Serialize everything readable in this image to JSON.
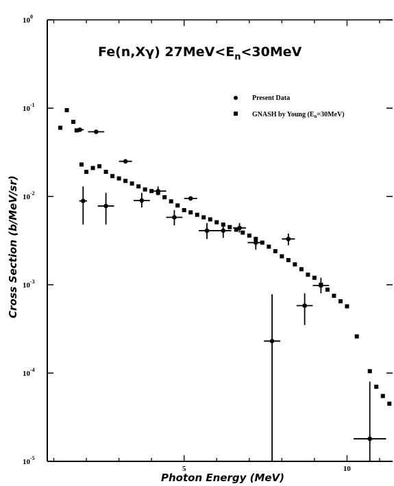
{
  "chart_data": {
    "type": "scatter",
    "title": "Fe(n,Xγ)  27MeV<E",
    "title_sub": "n",
    "title_tail": "<30MeV",
    "xlabel": "Photon Energy  (MeV)",
    "ylabel": "Cross Section  (b/MeV/sr)",
    "xlim": [
      0.8,
      11.4
    ],
    "ylim_log10": [
      -5,
      0
    ],
    "y_scale": "log",
    "x_ticks": [
      {
        "value": 5,
        "label": "5"
      },
      {
        "value": 10,
        "label": "10"
      }
    ],
    "y_ticks": [
      {
        "exp": 0,
        "label": "10",
        "sup": "0"
      },
      {
        "exp": -1,
        "label": "10",
        "sup": "-1"
      },
      {
        "exp": -2,
        "label": "10",
        "sup": "-2"
      },
      {
        "exp": -3,
        "label": "10",
        "sup": "-3"
      },
      {
        "exp": -4,
        "label": "10",
        "sup": "-4"
      },
      {
        "exp": -5,
        "label": "10",
        "sup": "-5"
      }
    ],
    "legend_position": "top-right",
    "series": [
      {
        "name": "Present Data",
        "marker": "circle",
        "points": [
          {
            "x": 1.8,
            "y": 0.057,
            "xerr": 0.12
          },
          {
            "x": 2.3,
            "y": 0.054,
            "xerr": 0.25
          },
          {
            "x": 1.9,
            "y": 0.0089,
            "xerr": 0.12,
            "ylo": 0.0048,
            "yhi": 0.013
          },
          {
            "x": 2.6,
            "y": 0.0078,
            "xerr": 0.25,
            "ylo": 0.0048,
            "yhi": 0.011
          },
          {
            "x": 3.2,
            "y": 0.025,
            "xerr": 0.2
          },
          {
            "x": 3.7,
            "y": 0.009,
            "xerr": 0.25,
            "ylo": 0.0075,
            "yhi": 0.011
          },
          {
            "x": 4.2,
            "y": 0.0115,
            "xerr": 0.25,
            "ylo": 0.0103,
            "yhi": 0.013
          },
          {
            "x": 4.7,
            "y": 0.0058,
            "xerr": 0.25,
            "ylo": 0.0047,
            "yhi": 0.007
          },
          {
            "x": 5.2,
            "y": 0.0095,
            "xerr": 0.2
          },
          {
            "x": 5.7,
            "y": 0.0041,
            "xerr": 0.25,
            "ylo": 0.0033,
            "yhi": 0.005
          },
          {
            "x": 6.2,
            "y": 0.0041,
            "xerr": 0.25,
            "ylo": 0.0034,
            "yhi": 0.0048
          },
          {
            "x": 6.7,
            "y": 0.0044,
            "xerr": 0.2,
            "ylo": 0.0039,
            "yhi": 0.005
          },
          {
            "x": 7.2,
            "y": 0.003,
            "xerr": 0.25,
            "ylo": 0.0025,
            "yhi": 0.0035
          },
          {
            "x": 7.7,
            "y": 0.00023,
            "xerr": 0.25,
            "ylo": 1e-05,
            "yhi": 0.00078
          },
          {
            "x": 8.2,
            "y": 0.0033,
            "xerr": 0.2,
            "ylo": 0.0028,
            "yhi": 0.0038
          },
          {
            "x": 8.7,
            "y": 0.00058,
            "xerr": 0.25,
            "ylo": 0.00035,
            "yhi": 0.0008
          },
          {
            "x": 9.2,
            "y": 0.00098,
            "xerr": 0.25,
            "ylo": 0.0008,
            "yhi": 0.0012
          },
          {
            "x": 10.7,
            "y": 1.8e-05,
            "xerr": 0.5,
            "ylo": 1e-05,
            "yhi": 8e-05
          }
        ]
      },
      {
        "name": "GNASH by Young (E",
        "name_sub": "n",
        "name_tail": "=30MeV)",
        "marker": "square",
        "points": [
          {
            "x": 1.2,
            "y": 0.06
          },
          {
            "x": 1.4,
            "y": 0.095
          },
          {
            "x": 1.6,
            "y": 0.07
          },
          {
            "x": 1.7,
            "y": 0.056
          },
          {
            "x": 1.85,
            "y": 0.023
          },
          {
            "x": 2.0,
            "y": 0.019
          },
          {
            "x": 2.2,
            "y": 0.021
          },
          {
            "x": 2.4,
            "y": 0.022
          },
          {
            "x": 2.6,
            "y": 0.019
          },
          {
            "x": 2.8,
            "y": 0.017
          },
          {
            "x": 3.0,
            "y": 0.016
          },
          {
            "x": 3.2,
            "y": 0.015
          },
          {
            "x": 3.4,
            "y": 0.014
          },
          {
            "x": 3.6,
            "y": 0.013
          },
          {
            "x": 3.8,
            "y": 0.012
          },
          {
            "x": 4.0,
            "y": 0.0115
          },
          {
            "x": 4.2,
            "y": 0.011
          },
          {
            "x": 4.4,
            "y": 0.0098
          },
          {
            "x": 4.6,
            "y": 0.0088
          },
          {
            "x": 4.8,
            "y": 0.0079
          },
          {
            "x": 5.0,
            "y": 0.007
          },
          {
            "x": 5.2,
            "y": 0.0066
          },
          {
            "x": 5.4,
            "y": 0.0062
          },
          {
            "x": 5.6,
            "y": 0.0058
          },
          {
            "x": 5.8,
            "y": 0.0055
          },
          {
            "x": 6.0,
            "y": 0.0051
          },
          {
            "x": 6.2,
            "y": 0.0048
          },
          {
            "x": 6.4,
            "y": 0.0045
          },
          {
            "x": 6.6,
            "y": 0.0042
          },
          {
            "x": 6.8,
            "y": 0.0039
          },
          {
            "x": 7.0,
            "y": 0.0036
          },
          {
            "x": 7.2,
            "y": 0.0033
          },
          {
            "x": 7.4,
            "y": 0.003
          },
          {
            "x": 7.6,
            "y": 0.0027
          },
          {
            "x": 7.8,
            "y": 0.0024
          },
          {
            "x": 8.0,
            "y": 0.0021
          },
          {
            "x": 8.2,
            "y": 0.0019
          },
          {
            "x": 8.4,
            "y": 0.0017
          },
          {
            "x": 8.6,
            "y": 0.0015
          },
          {
            "x": 8.8,
            "y": 0.0013
          },
          {
            "x": 9.0,
            "y": 0.0012
          },
          {
            "x": 9.2,
            "y": 0.001
          },
          {
            "x": 9.4,
            "y": 0.00088
          },
          {
            "x": 9.6,
            "y": 0.00075
          },
          {
            "x": 9.8,
            "y": 0.00065
          },
          {
            "x": 10.0,
            "y": 0.00057
          },
          {
            "x": 10.3,
            "y": 0.00026
          },
          {
            "x": 10.7,
            "y": 0.000105
          },
          {
            "x": 10.9,
            "y": 7e-05
          },
          {
            "x": 11.1,
            "y": 5.5e-05
          },
          {
            "x": 11.3,
            "y": 4.5e-05
          },
          {
            "x": 11.45,
            "y": 3.2e-05
          }
        ]
      }
    ]
  }
}
